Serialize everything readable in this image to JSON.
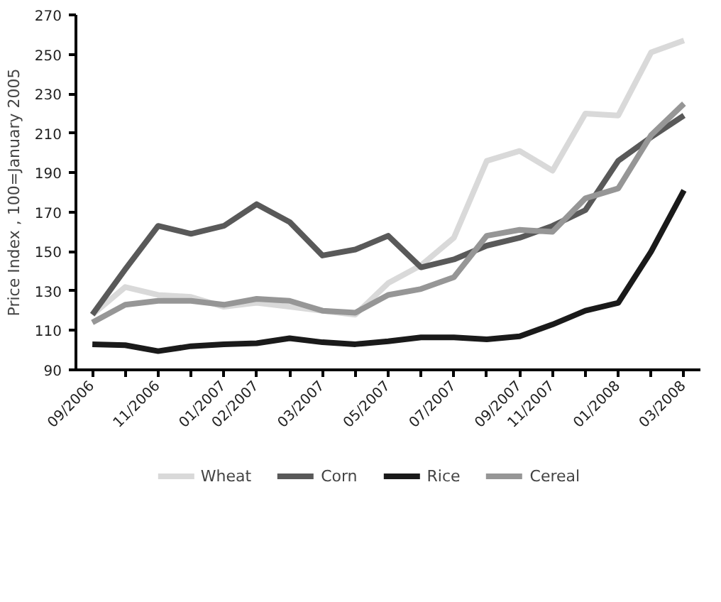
{
  "chart_data": {
    "type": "line",
    "ylabel": "Price Index , 100=January 2005",
    "categories": [
      "09/2006",
      null,
      "11/2006",
      null,
      "01/2007",
      "02/2007",
      null,
      "03/2007",
      null,
      "05/2007",
      null,
      "07/2007",
      null,
      "09/2007",
      "11/2007",
      null,
      "01/2008",
      null,
      "03/2008"
    ],
    "series": [
      {
        "name": "Wheat",
        "color": "#d9d9d9",
        "values": [
          118,
          132,
          128,
          127,
          122,
          124,
          122,
          120,
          118,
          134,
          143,
          157,
          196,
          201,
          191,
          220,
          219,
          251,
          257
        ]
      },
      {
        "name": "Corn",
        "color": "#595959",
        "values": [
          118,
          141,
          163,
          159,
          163,
          174,
          165,
          148,
          151,
          158,
          142,
          146,
          153,
          157,
          163,
          171,
          196,
          208,
          219
        ]
      },
      {
        "name": "Rice",
        "color": "#1a1a1a",
        "values": [
          103,
          102.5,
          99.5,
          102,
          103,
          103.5,
          106,
          104,
          103,
          104.5,
          106.5,
          106.5,
          105.5,
          107,
          113,
          120,
          124,
          150,
          181
        ]
      },
      {
        "name": "Cereal",
        "color": "#969696",
        "values": [
          114,
          123,
          125,
          125,
          123,
          126,
          125,
          120,
          119,
          128,
          131,
          137,
          158,
          161,
          160,
          177,
          182,
          209,
          225
        ]
      }
    ],
    "ylim": [
      90,
      270
    ],
    "yticks": [
      90,
      110,
      130,
      150,
      170,
      190,
      210,
      230,
      250,
      270
    ],
    "grid": false,
    "legend": "bottom",
    "marker": "none",
    "line_style": "solid"
  }
}
